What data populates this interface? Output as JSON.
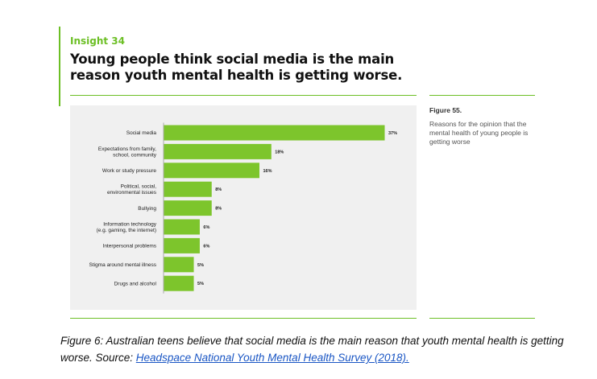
{
  "header": {
    "insight": "Insight 34",
    "headline": "Young people think social media is the main reason youth mental health is getting worse."
  },
  "figure": {
    "label": "Figure 55.",
    "description": "Reasons for the opinion that the mental health of young people is getting worse"
  },
  "caption": {
    "text": "Figure 6: Australian teens believe that social media is the main reason that youth mental health is getting worse. Source: ",
    "link": "Headspace National Youth Mental Health Survey (2018)."
  },
  "colors": {
    "bar": "#7dc52c",
    "accent": "#6cbf25",
    "panel": "#f0f0f0"
  },
  "chart_data": {
    "type": "bar",
    "orientation": "horizontal",
    "categories": [
      [
        "Social media"
      ],
      [
        "Expectations from family,",
        "school, community"
      ],
      [
        "Work or study pressure"
      ],
      [
        "Political, social,",
        "environmental issues"
      ],
      [
        "Bullying"
      ],
      [
        "Information technology",
        "(e.g. gaming, the internet)"
      ],
      [
        "Interpersonal problems"
      ],
      [
        "Stigma around mental illness"
      ],
      [
        "Drugs and alcohol"
      ]
    ],
    "values": [
      37,
      18,
      16,
      8,
      8,
      6,
      6,
      5,
      5
    ],
    "value_labels": [
      "37%",
      "18%",
      "16%",
      "8%",
      "8%",
      "6%",
      "6%",
      "5%",
      "5%"
    ],
    "xlim": [
      0,
      40
    ],
    "grid": false,
    "legend": "none"
  }
}
